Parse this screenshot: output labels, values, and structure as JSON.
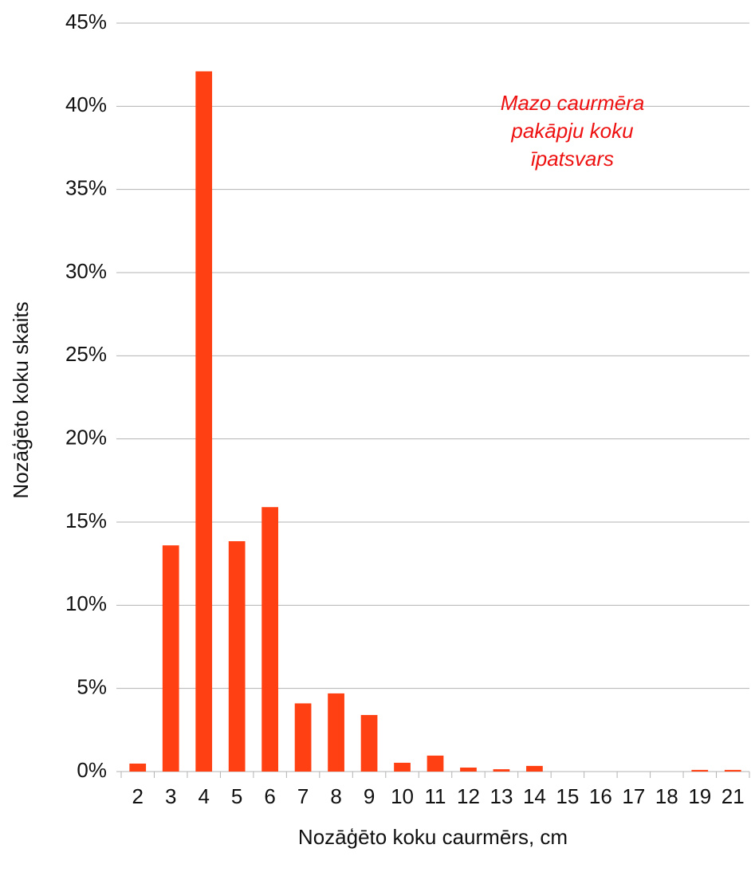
{
  "chart_data": {
    "type": "bar",
    "categories": [
      "2",
      "3",
      "4",
      "5",
      "6",
      "7",
      "8",
      "9",
      "10",
      "11",
      "12",
      "13",
      "14",
      "15",
      "16",
      "17",
      "18",
      "19",
      "21"
    ],
    "values": [
      0.48,
      13.6,
      42.1,
      13.85,
      15.9,
      4.1,
      4.7,
      3.4,
      0.53,
      0.96,
      0.24,
      0.14,
      0.34,
      0,
      0,
      0,
      0,
      0.1,
      0.1
    ],
    "color": "#ff4013",
    "ylim": [
      0,
      45
    ],
    "yticks": [
      {
        "value": 0,
        "label": "0%"
      },
      {
        "value": 5,
        "label": "5%"
      },
      {
        "value": 10,
        "label": "10%"
      },
      {
        "value": 15,
        "label": "15%"
      },
      {
        "value": 20,
        "label": "20%"
      },
      {
        "value": 25,
        "label": "25%"
      },
      {
        "value": 30,
        "label": "30%"
      },
      {
        "value": 35,
        "label": "35%"
      },
      {
        "value": 40,
        "label": "40%"
      },
      {
        "value": 45,
        "label": "45%"
      }
    ],
    "grid": true,
    "x_label": "Nozāģēto koku caurmērs, cm",
    "y_label": "Nozāģēto koku skaits",
    "annotation": [
      "Mazo caurmēra",
      "pakāpju koku",
      "īpatsvars"
    ],
    "annotation_color": "#ee1111"
  }
}
